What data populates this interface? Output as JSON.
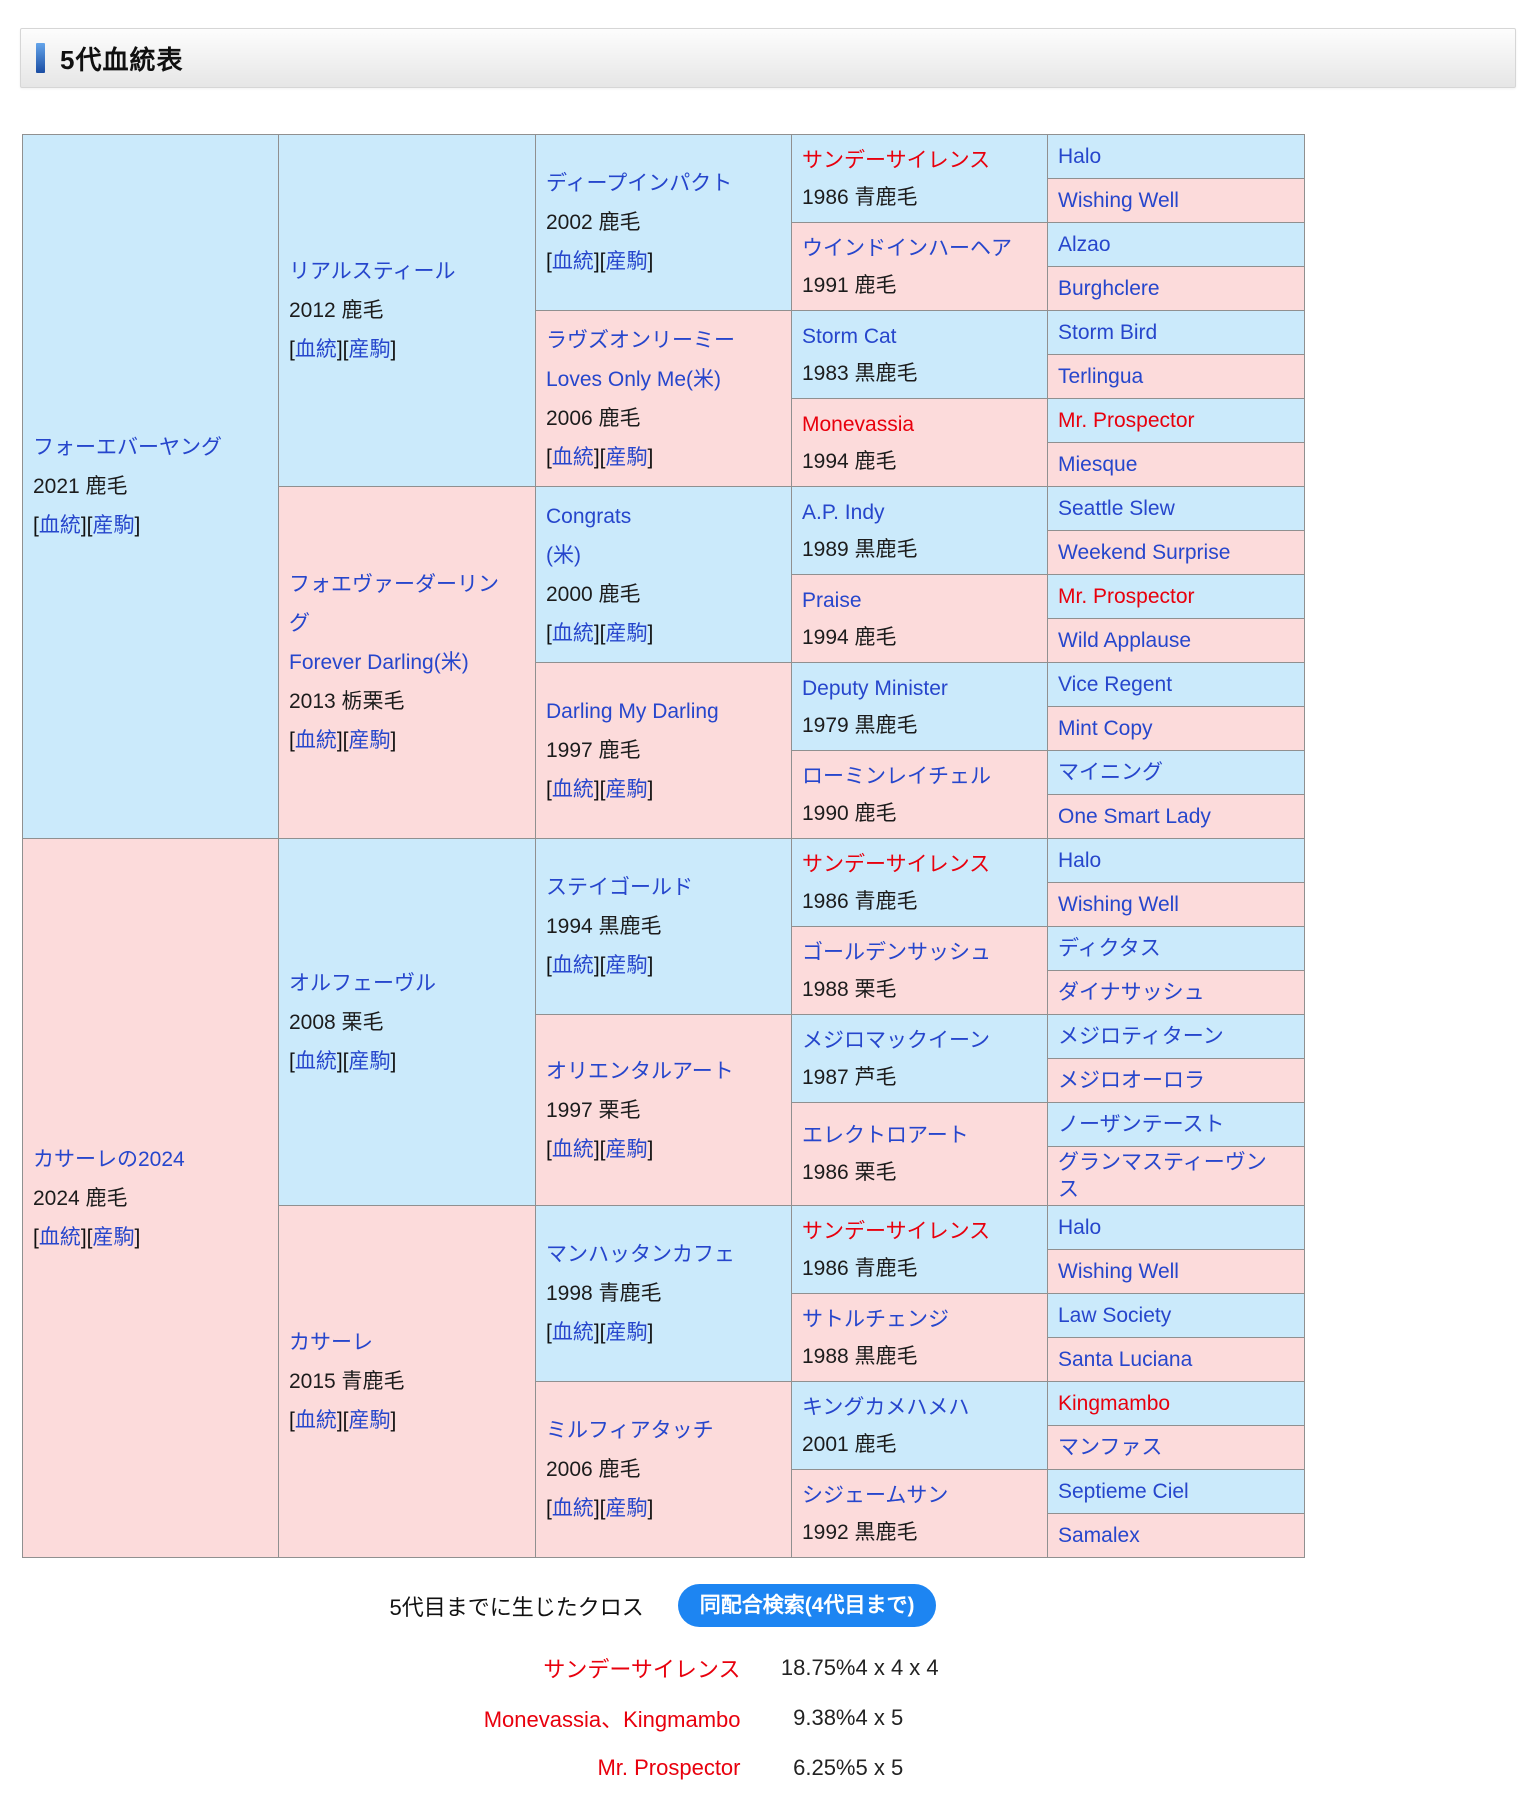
{
  "header": {
    "title": "5代血統表"
  },
  "link_labels": {
    "pedigree": "血統",
    "offspring": "産駒"
  },
  "colors": {
    "male_bg": "#cbeafb",
    "female_bg": "#fcdbdb",
    "link": "#2646cc",
    "highlight_red": "#e8000d",
    "button_bg": "#1d85f2"
  },
  "pedigree": {
    "gen1": [
      {
        "name": "フォーエバーヤング",
        "info": "2021 鹿毛",
        "sex": "m",
        "red": false
      },
      {
        "name": "カサーレの2024",
        "info": "2024 鹿毛",
        "sex": "f",
        "red": false
      }
    ],
    "gen2": [
      {
        "name": "リアルスティール",
        "info": "2012 鹿毛",
        "sex": "m",
        "red": false
      },
      {
        "name": "フォエヴァーダーリング",
        "name2": "Forever Darling(米)",
        "info": "2013 栃栗毛",
        "sex": "f",
        "red": false
      },
      {
        "name": "オルフェーヴル",
        "info": "2008 栗毛",
        "sex": "m",
        "red": false
      },
      {
        "name": "カサーレ",
        "info": "2015 青鹿毛",
        "sex": "f",
        "red": false
      }
    ],
    "gen3": [
      {
        "name": "ディープインパクト",
        "info": "2002 鹿毛",
        "sex": "m",
        "red": false
      },
      {
        "name": "ラヴズオンリーミー",
        "name2": "Loves Only Me(米)",
        "info": "2006 鹿毛",
        "sex": "f",
        "red": false
      },
      {
        "name": "Congrats",
        "name2": "(米)",
        "info": "2000 鹿毛",
        "sex": "m",
        "red": false
      },
      {
        "name": "Darling My Darling",
        "info": "1997 鹿毛",
        "sex": "f",
        "red": false
      },
      {
        "name": "ステイゴールド",
        "info": "1994 黒鹿毛",
        "sex": "m",
        "red": false
      },
      {
        "name": "オリエンタルアート",
        "info": "1997 栗毛",
        "sex": "f",
        "red": false
      },
      {
        "name": "マンハッタンカフェ",
        "info": "1998 青鹿毛",
        "sex": "m",
        "red": false
      },
      {
        "name": "ミルフィアタッチ",
        "info": "2006 鹿毛",
        "sex": "f",
        "red": false
      }
    ],
    "gen4": [
      {
        "name": "サンデーサイレンス",
        "info": "1986 青鹿毛",
        "sex": "m",
        "red": true
      },
      {
        "name": "ウインドインハーヘア",
        "info": "1991 鹿毛",
        "sex": "f",
        "red": false
      },
      {
        "name": "Storm Cat",
        "info": "1983 黒鹿毛",
        "sex": "m",
        "red": false
      },
      {
        "name": "Monevassia",
        "info": "1994 鹿毛",
        "sex": "f",
        "red": true
      },
      {
        "name": "A.P. Indy",
        "info": "1989 黒鹿毛",
        "sex": "m",
        "red": false
      },
      {
        "name": "Praise",
        "info": "1994 鹿毛",
        "sex": "f",
        "red": false
      },
      {
        "name": "Deputy Minister",
        "info": "1979 黒鹿毛",
        "sex": "m",
        "red": false
      },
      {
        "name": "ローミンレイチェル",
        "info": "1990 鹿毛",
        "sex": "f",
        "red": false
      },
      {
        "name": "サンデーサイレンス",
        "info": "1986 青鹿毛",
        "sex": "m",
        "red": true
      },
      {
        "name": "ゴールデンサッシュ",
        "info": "1988 栗毛",
        "sex": "f",
        "red": false
      },
      {
        "name": "メジロマックイーン",
        "info": "1987 芦毛",
        "sex": "m",
        "red": false
      },
      {
        "name": "エレクトロアート",
        "info": "1986 栗毛",
        "sex": "f",
        "red": false
      },
      {
        "name": "サンデーサイレンス",
        "info": "1986 青鹿毛",
        "sex": "m",
        "red": true
      },
      {
        "name": "サトルチェンジ",
        "info": "1988 黒鹿毛",
        "sex": "f",
        "red": false
      },
      {
        "name": "キングカメハメハ",
        "info": "2001 鹿毛",
        "sex": "m",
        "red": false
      },
      {
        "name": "シジェームサン",
        "info": "1992 黒鹿毛",
        "sex": "f",
        "red": false
      }
    ],
    "gen5": [
      {
        "name": "Halo",
        "sex": "m",
        "red": false
      },
      {
        "name": "Wishing Well",
        "sex": "f",
        "red": false
      },
      {
        "name": "Alzao",
        "sex": "m",
        "red": false
      },
      {
        "name": "Burghclere",
        "sex": "f",
        "red": false
      },
      {
        "name": "Storm Bird",
        "sex": "m",
        "red": false
      },
      {
        "name": "Terlingua",
        "sex": "f",
        "red": false
      },
      {
        "name": "Mr. Prospector",
        "sex": "m",
        "red": true
      },
      {
        "name": "Miesque",
        "sex": "f",
        "red": false
      },
      {
        "name": "Seattle Slew",
        "sex": "m",
        "red": false
      },
      {
        "name": "Weekend Surprise",
        "sex": "f",
        "red": false
      },
      {
        "name": "Mr. Prospector",
        "sex": "m",
        "red": true
      },
      {
        "name": "Wild Applause",
        "sex": "f",
        "red": false
      },
      {
        "name": "Vice Regent",
        "sex": "m",
        "red": false
      },
      {
        "name": "Mint Copy",
        "sex": "f",
        "red": false
      },
      {
        "name": "マイニング",
        "sex": "m",
        "red": false
      },
      {
        "name": "One Smart Lady",
        "sex": "f",
        "red": false
      },
      {
        "name": "Halo",
        "sex": "m",
        "red": false
      },
      {
        "name": "Wishing Well",
        "sex": "f",
        "red": false
      },
      {
        "name": "ディクタス",
        "sex": "m",
        "red": false
      },
      {
        "name": "ダイナサッシュ",
        "sex": "f",
        "red": false
      },
      {
        "name": "メジロティターン",
        "sex": "m",
        "red": false
      },
      {
        "name": "メジロオーロラ",
        "sex": "f",
        "red": false
      },
      {
        "name": "ノーザンテースト",
        "sex": "m",
        "red": false
      },
      {
        "name": "グランマスティーヴンス",
        "sex": "f",
        "red": false
      },
      {
        "name": "Halo",
        "sex": "m",
        "red": false
      },
      {
        "name": "Wishing Well",
        "sex": "f",
        "red": false
      },
      {
        "name": "Law Society",
        "sex": "m",
        "red": false
      },
      {
        "name": "Santa Luciana",
        "sex": "f",
        "red": false
      },
      {
        "name": "Kingmambo",
        "sex": "m",
        "red": true
      },
      {
        "name": "マンファス",
        "sex": "f",
        "red": false
      },
      {
        "name": "Septieme Ciel",
        "sex": "m",
        "red": false
      },
      {
        "name": "Samalex",
        "sex": "f",
        "red": false
      }
    ]
  },
  "footer": {
    "caption": "5代目までに生じたクロス",
    "button_label": "同配合検索(4代目まで)",
    "crosses": [
      {
        "name": "サンデーサイレンス",
        "percent": "18.75%",
        "pattern": "4 x 4 x 4"
      },
      {
        "name": "Monevassia、Kingmambo",
        "percent": "9.38%",
        "pattern": "4 x 5"
      },
      {
        "name": "Mr. Prospector",
        "percent": "6.25%",
        "pattern": "5 x 5"
      }
    ]
  }
}
